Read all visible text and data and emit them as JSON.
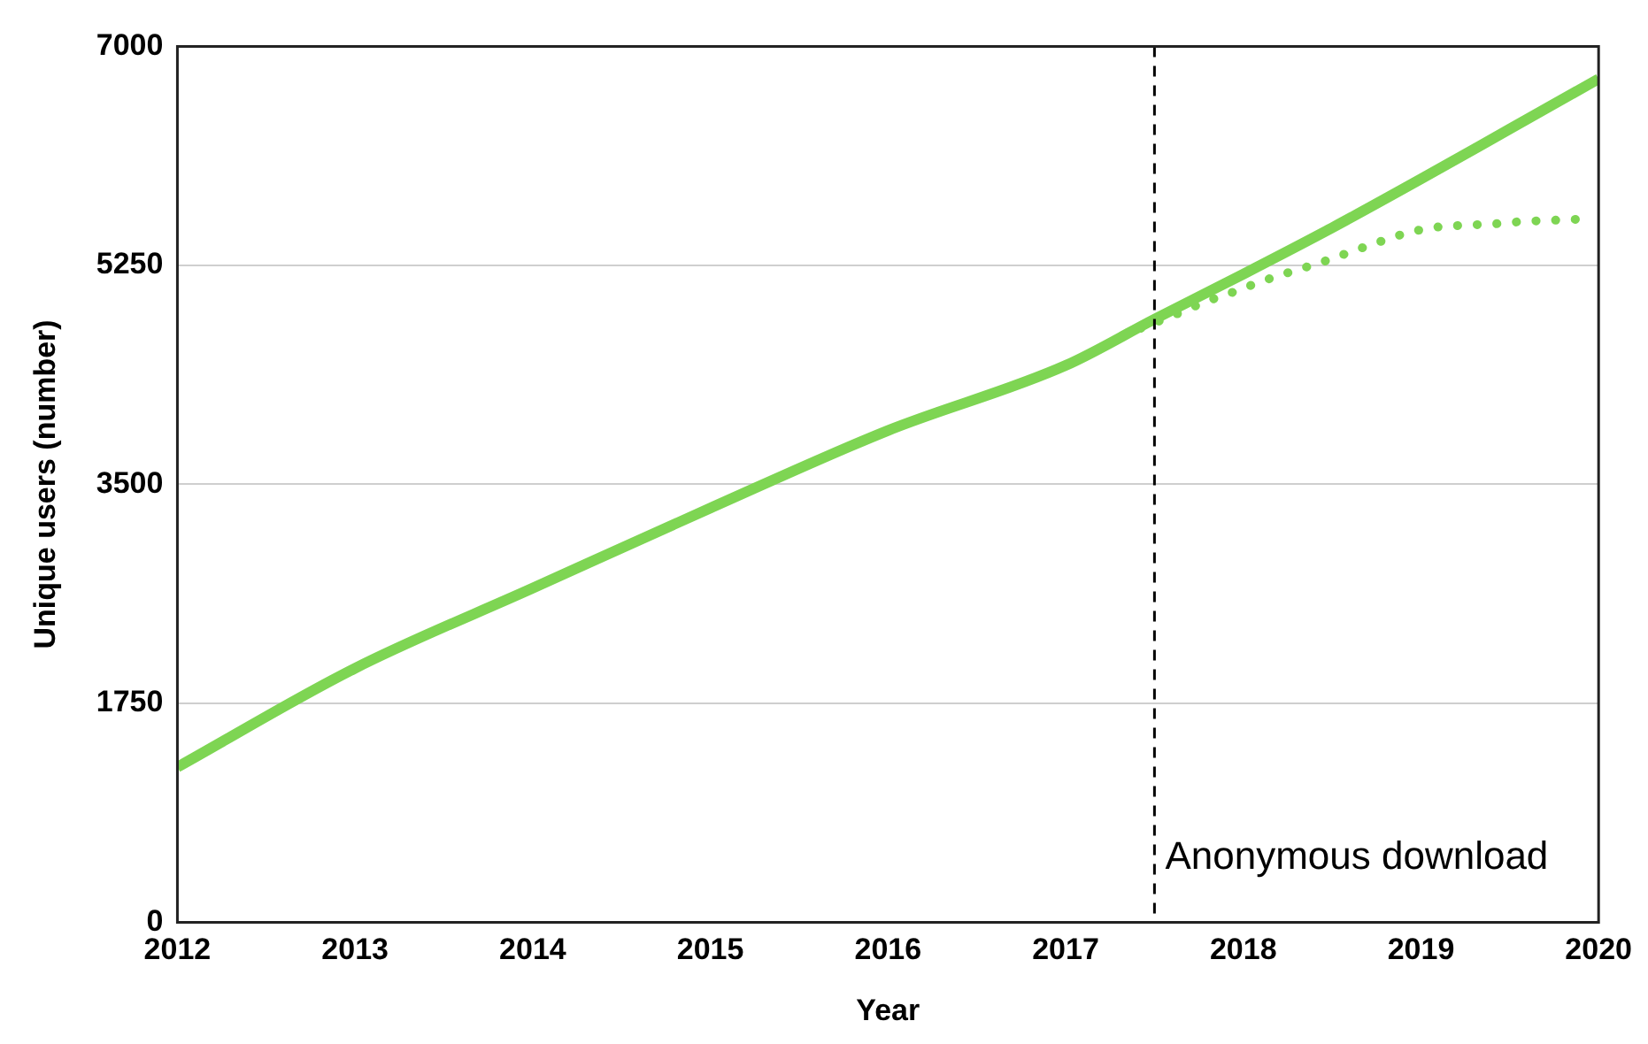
{
  "chart_data": {
    "type": "line",
    "xlabel": "Year",
    "ylabel": "Unique users (number)",
    "xlim": [
      2012,
      2020
    ],
    "xticks": [
      2012,
      2013,
      2014,
      2015,
      2016,
      2017,
      2018,
      2019,
      2020
    ],
    "ylim": [
      0,
      7000
    ],
    "yticks": [
      0,
      1750,
      3500,
      5250,
      7000
    ],
    "grid": "y",
    "legend": false,
    "marker": "none",
    "series": [
      {
        "color": "#7ed553",
        "line_style": "solid",
        "x": [
          2012,
          2013,
          2014,
          2015,
          2016,
          2017,
          2017.5,
          2018,
          2018.5,
          2019,
          2019.5,
          2020
        ],
        "values": [
          1240,
          2030,
          2670,
          3310,
          3930,
          4450,
          4820,
          5180,
          5550,
          5940,
          6340,
          6740
        ]
      },
      {
        "color": "#7ed553",
        "line_style": "dotted",
        "x": [
          2017.32,
          2017.64,
          2017.79,
          2017.95,
          2018.1,
          2018.27,
          2018.43,
          2018.59,
          2018.75,
          2018.9,
          2019.06,
          2019.23,
          2019.4,
          2019.57,
          2019.74,
          2019.91
        ],
        "values": [
          4690,
          4870,
          4960,
          5040,
          5120,
          5200,
          5270,
          5350,
          5430,
          5500,
          5550,
          5570,
          5580,
          5600,
          5610,
          5620
        ]
      }
    ],
    "ref_lines": [
      {
        "axis": "x",
        "value": 2017.5,
        "label": "Anonymous download",
        "color": "#000000",
        "line_style": "dashed"
      }
    ]
  }
}
